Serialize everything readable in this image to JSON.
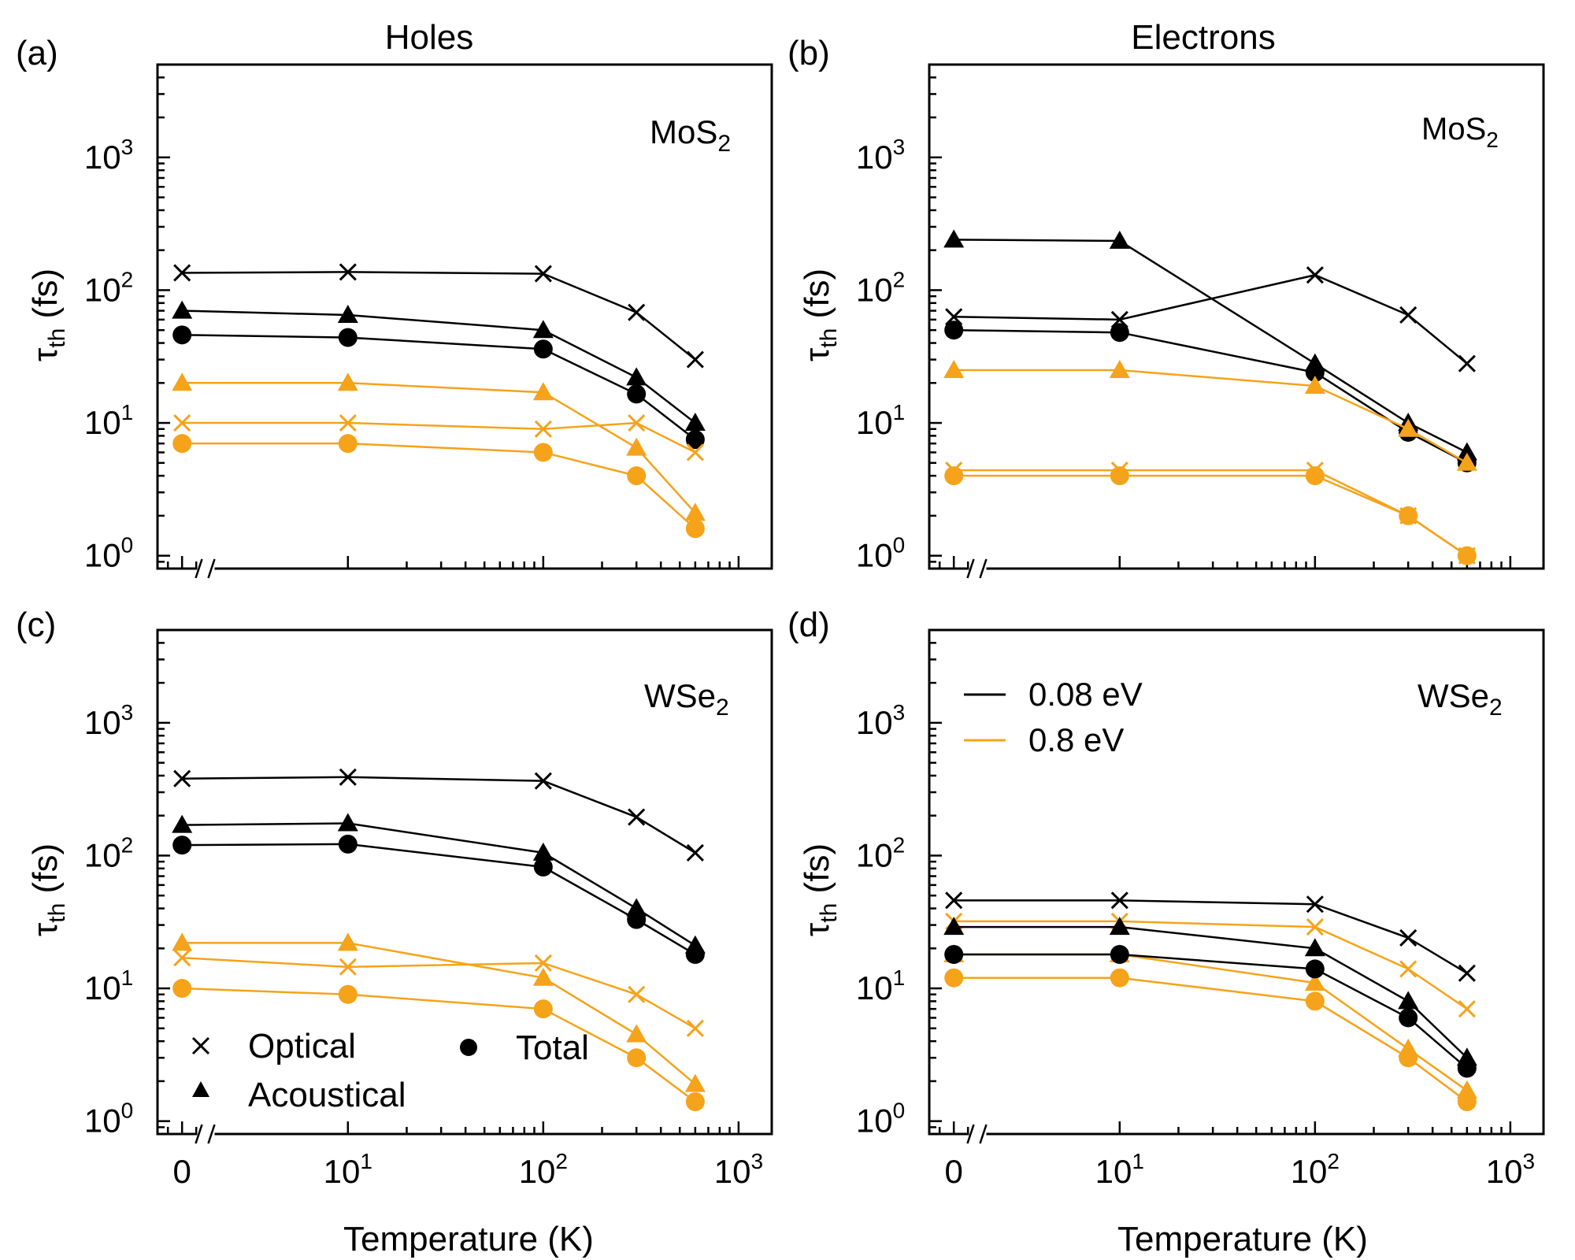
{
  "figure": {
    "column_titles": [
      "Holes",
      "Electrons"
    ],
    "shared_xlabel": "Temperature (K)",
    "shared_ylabel_main": "τ",
    "shared_ylabel_sub": "th",
    "shared_ylabel_unit": "(fs)",
    "colors": {
      "low_energy": "#000000",
      "high_energy": "#F5A31A",
      "axis": "#000000"
    }
  },
  "legend_markers": {
    "optical": "Optical",
    "acoustical": "Acoustical",
    "total": "Total"
  },
  "legend_energy": {
    "low": "0.08 eV",
    "high": "0.8 eV"
  },
  "chart_data": [
    {
      "panel": "(a)",
      "material_base": "MoS",
      "material_sub": "2",
      "type": "line",
      "xscale": "log-with-zero-break",
      "yscale": "log",
      "x": [
        0,
        10,
        100,
        300,
        600
      ],
      "x_tick_labels": [
        "0",
        "10",
        "10",
        "10"
      ],
      "x_tick_exponents": [
        "",
        "1",
        "2",
        "3"
      ],
      "ylim": [
        0.8,
        5000
      ],
      "y_tick_labels": [
        "10",
        "10",
        "10",
        "10"
      ],
      "y_tick_exponents": [
        "0",
        "1",
        "2",
        "3"
      ],
      "series": [
        {
          "name": "Optical 0.08 eV",
          "marker": "x",
          "energy": "low",
          "values": [
            135,
            137,
            133,
            68,
            30
          ]
        },
        {
          "name": "Acoustical 0.08 eV",
          "marker": "triangle",
          "energy": "low",
          "values": [
            70,
            65,
            50,
            22,
            10
          ]
        },
        {
          "name": "Total 0.08 eV",
          "marker": "circle",
          "energy": "low",
          "values": [
            46,
            44,
            36,
            16.5,
            7.5
          ]
        },
        {
          "name": "Acoustical 0.8 eV",
          "marker": "triangle",
          "energy": "high",
          "values": [
            20,
            20,
            17,
            6.5,
            2.1
          ]
        },
        {
          "name": "Optical 0.8 eV",
          "marker": "x",
          "energy": "high",
          "values": [
            10,
            10,
            9,
            10,
            6
          ]
        },
        {
          "name": "Total 0.8 eV",
          "marker": "circle",
          "energy": "high",
          "values": [
            7,
            7,
            6,
            4,
            1.6
          ]
        }
      ]
    },
    {
      "panel": "(b)",
      "material_base": "MoS",
      "material_sub": "2",
      "type": "line",
      "xscale": "log-with-zero-break",
      "yscale": "log",
      "x": [
        0,
        10,
        100,
        300,
        600
      ],
      "x_tick_labels": [
        "0",
        "10",
        "10",
        "10"
      ],
      "x_tick_exponents": [
        "",
        "1",
        "2",
        "3"
      ],
      "ylim": [
        0.8,
        5000
      ],
      "y_tick_labels": [
        "10",
        "10",
        "10",
        "10"
      ],
      "y_tick_exponents": [
        "0",
        "1",
        "2",
        "3"
      ],
      "series": [
        {
          "name": "Acoustical 0.08 eV",
          "marker": "triangle",
          "energy": "low",
          "values": [
            240,
            235,
            28,
            10,
            6
          ]
        },
        {
          "name": "Optical 0.08 eV",
          "marker": "x",
          "energy": "low",
          "values": [
            63,
            60,
            130,
            65,
            28
          ]
        },
        {
          "name": "Total 0.08 eV",
          "marker": "circle",
          "energy": "low",
          "values": [
            50,
            48,
            24,
            8.5,
            5
          ]
        },
        {
          "name": "Acoustical 0.8 eV",
          "marker": "triangle",
          "energy": "high",
          "values": [
            25,
            25,
            19,
            9,
            5
          ]
        },
        {
          "name": "Optical 0.8 eV",
          "marker": "x",
          "energy": "high",
          "values": [
            4.4,
            4.4,
            4.4,
            2,
            1
          ]
        },
        {
          "name": "Total 0.8 eV",
          "marker": "circle",
          "energy": "high",
          "values": [
            4,
            4,
            4,
            2,
            1
          ]
        }
      ]
    },
    {
      "panel": "(c)",
      "material_base": "WSe",
      "material_sub": "2",
      "type": "line",
      "xscale": "log-with-zero-break",
      "yscale": "log",
      "x": [
        0,
        10,
        100,
        300,
        600
      ],
      "x_tick_labels": [
        "0",
        "10",
        "10",
        "10"
      ],
      "x_tick_exponents": [
        "",
        "1",
        "2",
        "3"
      ],
      "ylim": [
        0.8,
        5000
      ],
      "y_tick_labels": [
        "10",
        "10",
        "10",
        "10"
      ],
      "y_tick_exponents": [
        "0",
        "1",
        "2",
        "3"
      ],
      "series": [
        {
          "name": "Optical 0.08 eV",
          "marker": "x",
          "energy": "low",
          "values": [
            380,
            390,
            365,
            195,
            105
          ]
        },
        {
          "name": "Acoustical 0.08 eV",
          "marker": "triangle",
          "energy": "low",
          "values": [
            170,
            175,
            105,
            40,
            21
          ]
        },
        {
          "name": "Total 0.08 eV",
          "marker": "circle",
          "energy": "low",
          "values": [
            120,
            122,
            82,
            33,
            18
          ]
        },
        {
          "name": "Acoustical 0.8 eV",
          "marker": "triangle",
          "energy": "high",
          "values": [
            22,
            22,
            12,
            4.5,
            1.9
          ]
        },
        {
          "name": "Optical 0.8 eV",
          "marker": "x",
          "energy": "high",
          "values": [
            17,
            14.5,
            15.5,
            9,
            5
          ]
        },
        {
          "name": "Total 0.8 eV",
          "marker": "circle",
          "energy": "high",
          "values": [
            10,
            9,
            7,
            3,
            1.4
          ]
        }
      ]
    },
    {
      "panel": "(d)",
      "material_base": "WSe",
      "material_sub": "2",
      "type": "line",
      "xscale": "log-with-zero-break",
      "yscale": "log",
      "x": [
        0,
        10,
        100,
        300,
        600
      ],
      "x_tick_labels": [
        "0",
        "10",
        "10",
        "10"
      ],
      "x_tick_exponents": [
        "",
        "1",
        "2",
        "3"
      ],
      "ylim": [
        0.8,
        5000
      ],
      "y_tick_labels": [
        "10",
        "10",
        "10",
        "10"
      ],
      "y_tick_exponents": [
        "0",
        "1",
        "2",
        "3"
      ],
      "series": [
        {
          "name": "Optical 0.08 eV",
          "marker": "x",
          "energy": "low",
          "values": [
            46,
            46,
            43,
            24,
            13
          ]
        },
        {
          "name": "Optical 0.8 eV",
          "marker": "x",
          "energy": "high",
          "values": [
            32,
            32,
            29,
            14,
            7
          ]
        },
        {
          "name": "Acoustical 0.08 eV",
          "marker": "triangle",
          "energy": "low",
          "values": [
            29,
            29,
            20,
            8,
            3
          ]
        },
        {
          "name": "Acoustical 0.8 eV",
          "marker": "triangle",
          "energy": "high",
          "values": [
            18,
            18,
            11,
            3.5,
            1.7
          ]
        },
        {
          "name": "Total 0.08 eV",
          "marker": "circle",
          "energy": "low",
          "values": [
            18,
            18,
            14,
            6,
            2.5
          ]
        },
        {
          "name": "Total 0.8 eV",
          "marker": "circle",
          "energy": "high",
          "values": [
            12,
            12,
            8,
            3,
            1.4
          ]
        }
      ]
    }
  ]
}
